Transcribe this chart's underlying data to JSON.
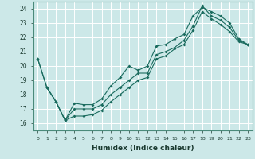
{
  "title": "",
  "xlabel": "Humidex (Indice chaleur)",
  "ylabel": "",
  "xlim": [
    -0.5,
    23.5
  ],
  "ylim": [
    15.5,
    24.5
  ],
  "yticks": [
    16,
    17,
    18,
    19,
    20,
    21,
    22,
    23,
    24
  ],
  "xticks": [
    0,
    1,
    2,
    3,
    4,
    5,
    6,
    7,
    8,
    9,
    10,
    11,
    12,
    13,
    14,
    15,
    16,
    17,
    18,
    19,
    20,
    21,
    22,
    23
  ],
  "bg_color": "#cce8e8",
  "grid_color": "#ffffff",
  "line_color": "#1a6b5e",
  "line1_x": [
    0,
    1,
    2,
    3,
    4,
    5,
    6,
    7,
    8,
    9,
    10,
    11,
    12,
    13,
    14,
    15,
    16,
    17,
    18,
    19,
    20,
    21,
    22,
    23
  ],
  "line1_y": [
    20.5,
    18.5,
    17.5,
    16.2,
    17.4,
    17.3,
    17.3,
    17.7,
    18.6,
    19.2,
    20.0,
    19.7,
    20.0,
    21.4,
    21.5,
    21.9,
    22.2,
    23.5,
    24.1,
    23.8,
    23.5,
    23.0,
    21.9,
    21.5
  ],
  "line2_x": [
    1,
    2,
    3,
    4,
    5,
    6,
    7,
    8,
    9,
    10,
    11,
    12,
    13,
    14,
    15,
    16,
    17,
    18,
    19,
    20,
    21,
    22,
    23
  ],
  "line2_y": [
    18.5,
    17.5,
    16.2,
    17.0,
    17.0,
    17.0,
    17.3,
    18.0,
    18.5,
    19.0,
    19.5,
    19.5,
    20.8,
    21.0,
    21.3,
    21.8,
    22.8,
    24.2,
    23.5,
    23.2,
    22.7,
    21.8,
    21.5
  ],
  "line3_x": [
    0,
    1,
    2,
    3,
    4,
    5,
    6,
    7,
    8,
    9,
    10,
    11,
    12,
    13,
    14,
    15,
    16,
    17,
    18,
    19,
    20,
    21,
    22,
    23
  ],
  "line3_y": [
    20.5,
    18.5,
    17.5,
    16.2,
    16.5,
    16.5,
    16.6,
    16.9,
    17.5,
    18.0,
    18.5,
    19.0,
    19.2,
    20.5,
    20.7,
    21.2,
    21.5,
    22.5,
    23.8,
    23.3,
    22.9,
    22.4,
    21.7,
    21.5
  ]
}
